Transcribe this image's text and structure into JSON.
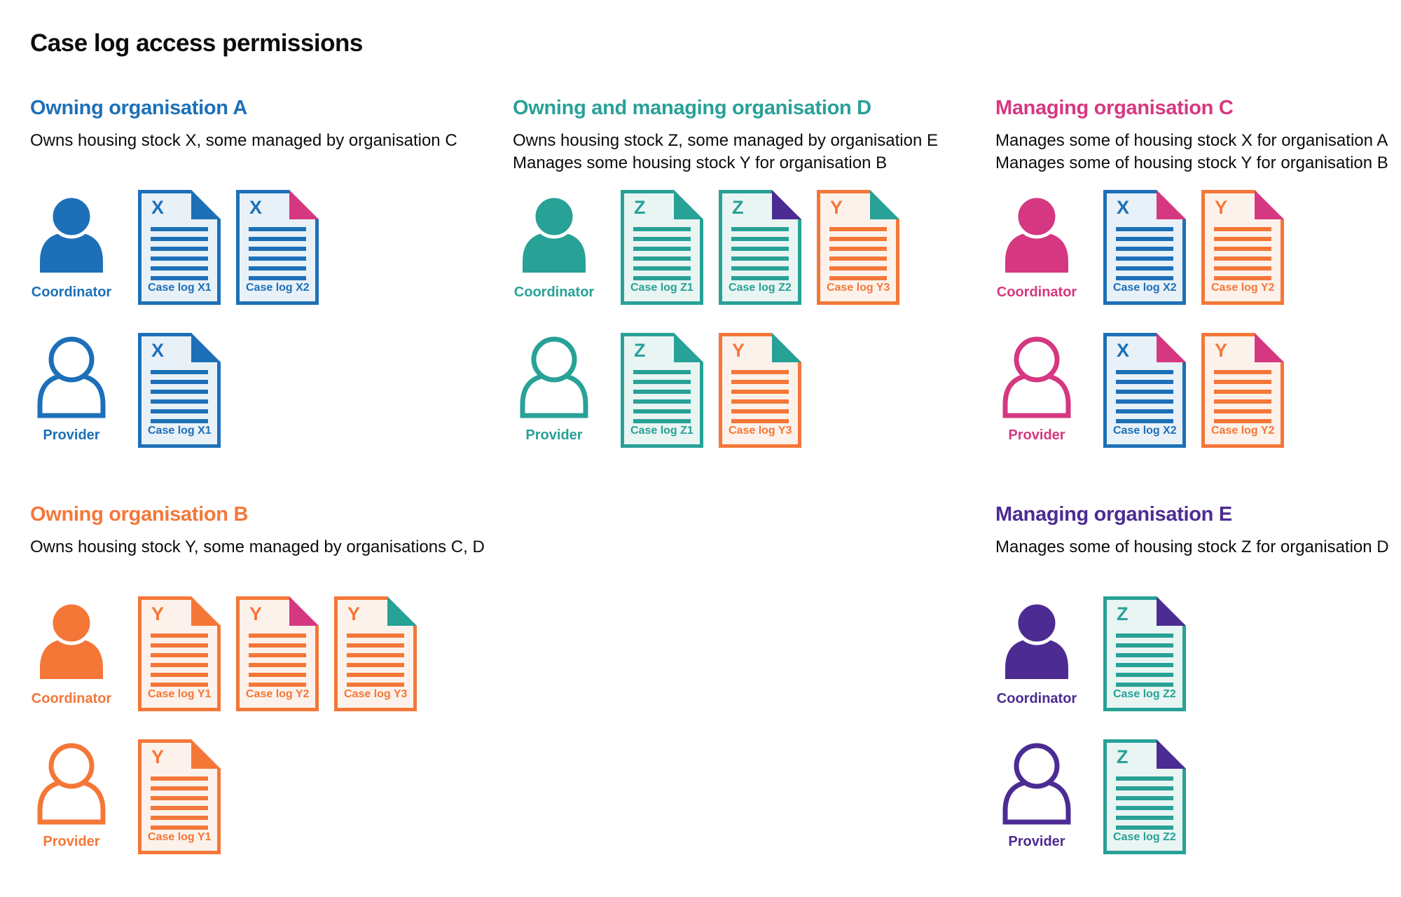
{
  "page_title": "Case log access permissions",
  "colors": {
    "blue": "#1d70b8",
    "teal": "#28a197",
    "pink": "#d53880",
    "orange": "#f47738",
    "purple": "#4c2c92",
    "text": "#0b0c0c",
    "blue_fill": "#e9f1f8",
    "teal_fill": "#e9f5f3",
    "orange_fill": "#fdf2eb"
  },
  "sections": [
    {
      "id": "owning-organisation-a",
      "title": "Owning organisation A",
      "color": "blue",
      "grid": {
        "row": 1,
        "col": 1
      },
      "description": [
        "Owns housing stock X, some managed by organisation C"
      ],
      "rows": [
        {
          "role": "Coordinator",
          "person": "filled",
          "docs": [
            {
              "letter": "X",
              "label": "Case log X1",
              "doc_color": "blue",
              "corner_color": "blue"
            },
            {
              "letter": "X",
              "label": "Case log X2",
              "doc_color": "blue",
              "corner_color": "pink"
            }
          ]
        },
        {
          "role": "Provider",
          "person": "outline",
          "docs": [
            {
              "letter": "X",
              "label": "Case log X1",
              "doc_color": "blue",
              "corner_color": "blue"
            }
          ]
        }
      ]
    },
    {
      "id": "owning-and-managing-organisation-d",
      "title": "Owning and managing organisation D",
      "color": "teal",
      "grid": {
        "row": 1,
        "col": 2
      },
      "description": [
        "Owns housing stock Z, some managed by organisation E",
        "Manages some housing stock Y for organisation B"
      ],
      "rows": [
        {
          "role": "Coordinator",
          "person": "filled",
          "docs": [
            {
              "letter": "Z",
              "label": "Case log Z1",
              "doc_color": "teal",
              "corner_color": "teal"
            },
            {
              "letter": "Z",
              "label": "Case log Z2",
              "doc_color": "teal",
              "corner_color": "purple"
            },
            {
              "letter": "Y",
              "label": "Case log Y3",
              "doc_color": "orange",
              "corner_color": "teal"
            }
          ]
        },
        {
          "role": "Provider",
          "person": "outline",
          "docs": [
            {
              "letter": "Z",
              "label": "Case log Z1",
              "doc_color": "teal",
              "corner_color": "teal"
            },
            {
              "letter": "Y",
              "label": "Case log Y3",
              "doc_color": "orange",
              "corner_color": "teal"
            }
          ]
        }
      ]
    },
    {
      "id": "managing-organisation-c",
      "title": "Managing organisation C",
      "color": "pink",
      "grid": {
        "row": 1,
        "col": 3
      },
      "description": [
        "Manages some of housing stock X for organisation A",
        "Manages some of housing stock Y for organisation B"
      ],
      "rows": [
        {
          "role": "Coordinator",
          "person": "filled",
          "docs": [
            {
              "letter": "X",
              "label": "Case log X2",
              "doc_color": "blue",
              "corner_color": "pink"
            },
            {
              "letter": "Y",
              "label": "Case log Y2",
              "doc_color": "orange",
              "corner_color": "pink"
            }
          ]
        },
        {
          "role": "Provider",
          "person": "outline",
          "docs": [
            {
              "letter": "X",
              "label": "Case log X2",
              "doc_color": "blue",
              "corner_color": "pink"
            },
            {
              "letter": "Y",
              "label": "Case log Y2",
              "doc_color": "orange",
              "corner_color": "pink"
            }
          ]
        }
      ]
    },
    {
      "id": "owning-organisation-b",
      "title": "Owning organisation B",
      "color": "orange",
      "grid": {
        "row": 2,
        "col": 1
      },
      "description": [
        "Owns housing stock Y, some managed by organisations C, D"
      ],
      "rows": [
        {
          "role": "Coordinator",
          "person": "filled",
          "docs": [
            {
              "letter": "Y",
              "label": "Case log Y1",
              "doc_color": "orange",
              "corner_color": "orange"
            },
            {
              "letter": "Y",
              "label": "Case log Y2",
              "doc_color": "orange",
              "corner_color": "pink"
            },
            {
              "letter": "Y",
              "label": "Case log Y3",
              "doc_color": "orange",
              "corner_color": "teal"
            }
          ]
        },
        {
          "role": "Provider",
          "person": "outline",
          "docs": [
            {
              "letter": "Y",
              "label": "Case log Y1",
              "doc_color": "orange",
              "corner_color": "orange"
            }
          ]
        }
      ]
    },
    {
      "id": "managing-organisation-e",
      "title": "Managing organisation E",
      "color": "purple",
      "grid": {
        "row": 2,
        "col": 3
      },
      "description": [
        "Manages some of housing stock Z for organisation D"
      ],
      "rows": [
        {
          "role": "Coordinator",
          "person": "filled",
          "docs": [
            {
              "letter": "Z",
              "label": "Case log Z2",
              "doc_color": "teal",
              "corner_color": "purple"
            }
          ]
        },
        {
          "role": "Provider",
          "person": "outline",
          "docs": [
            {
              "letter": "Z",
              "label": "Case log Z2",
              "doc_color": "teal",
              "corner_color": "purple"
            }
          ]
        }
      ]
    }
  ]
}
